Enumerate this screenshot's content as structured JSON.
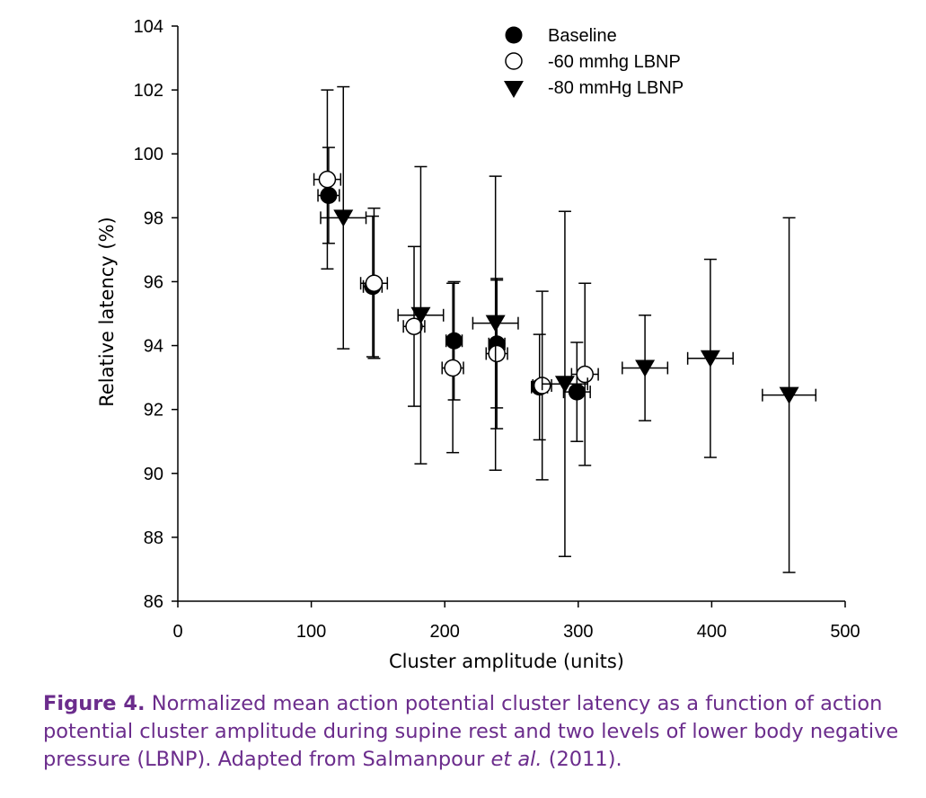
{
  "chart_data": {
    "type": "scatter",
    "xlabel": "Cluster amplitude (units)",
    "ylabel": "Relative latency (%)",
    "xlim": [
      0,
      500
    ],
    "ylim": [
      86,
      104
    ],
    "xticks": [
      "0",
      "100",
      "200",
      "300",
      "400",
      "500"
    ],
    "yticks": [
      "86",
      "88",
      "90",
      "92",
      "94",
      "96",
      "98",
      "100",
      "102",
      "104"
    ],
    "grid": false,
    "legend_position": "top-center",
    "series": [
      {
        "name": "Baseline",
        "marker": "filled-circle",
        "points": [
          {
            "x": 113,
            "y": 98.7,
            "xerr": 8,
            "yerr": 1.5
          },
          {
            "x": 146,
            "y": 95.85,
            "xerr": 7,
            "yerr": 2.2
          },
          {
            "x": 207,
            "y": 94.15,
            "xerr": 6,
            "yerr": 1.85
          },
          {
            "x": 239,
            "y": 94.05,
            "xerr": 6,
            "yerr": 2.0
          },
          {
            "x": 271,
            "y": 92.7,
            "xerr": 6,
            "yerr": 1.65
          },
          {
            "x": 299,
            "y": 92.55,
            "xerr": 10,
            "yerr": 1.55
          }
        ]
      },
      {
        "name": "-60 mmhg LBNP",
        "marker": "open-circle",
        "points": [
          {
            "x": 112,
            "y": 99.2,
            "xerr": 10,
            "yerr": 2.8
          },
          {
            "x": 147,
            "y": 95.95,
            "xerr": 10,
            "yerr": 2.35
          },
          {
            "x": 177,
            "y": 94.6,
            "xerr": 8,
            "yerr": 2.5
          },
          {
            "x": 206,
            "y": 93.3,
            "xerr": 8,
            "yerr": 2.65
          },
          {
            "x": 239,
            "y": 93.75,
            "xerr": 8,
            "yerr": 2.35
          },
          {
            "x": 273,
            "y": 92.75,
            "xerr": 7,
            "yerr": 2.95
          },
          {
            "x": 305,
            "y": 93.1,
            "xerr": 10,
            "yerr": 2.85
          }
        ]
      },
      {
        "name": "-80 mmHg LBNP",
        "marker": "filled-triangle-down",
        "points": [
          {
            "x": 124,
            "y": 98.0,
            "xerr": 17,
            "yerr": 4.1
          },
          {
            "x": 182,
            "y": 94.95,
            "xerr": 17,
            "yerr": 4.65
          },
          {
            "x": 238,
            "y": 94.7,
            "xerr": 17,
            "yerr": 4.6
          },
          {
            "x": 290,
            "y": 92.8,
            "xerr": 17,
            "yerr": 5.4
          },
          {
            "x": 350,
            "y": 93.3,
            "xerr": 17,
            "yerr": 1.65
          },
          {
            "x": 399,
            "y": 93.6,
            "xerr": 17,
            "yerr": 3.1
          },
          {
            "x": 458,
            "y": 92.45,
            "xerr": 20,
            "yerr": 5.55
          }
        ]
      }
    ]
  },
  "caption": {
    "label": "Figure 4.",
    "text_before_italic": " Normalized mean action potential cluster latency as a function of action potential cluster amplitude during supine rest and two levels of lower body negative pressure (LBNP). Adapted from Salmanpour ",
    "italic": "et al.",
    "text_after_italic": " (2011)."
  }
}
